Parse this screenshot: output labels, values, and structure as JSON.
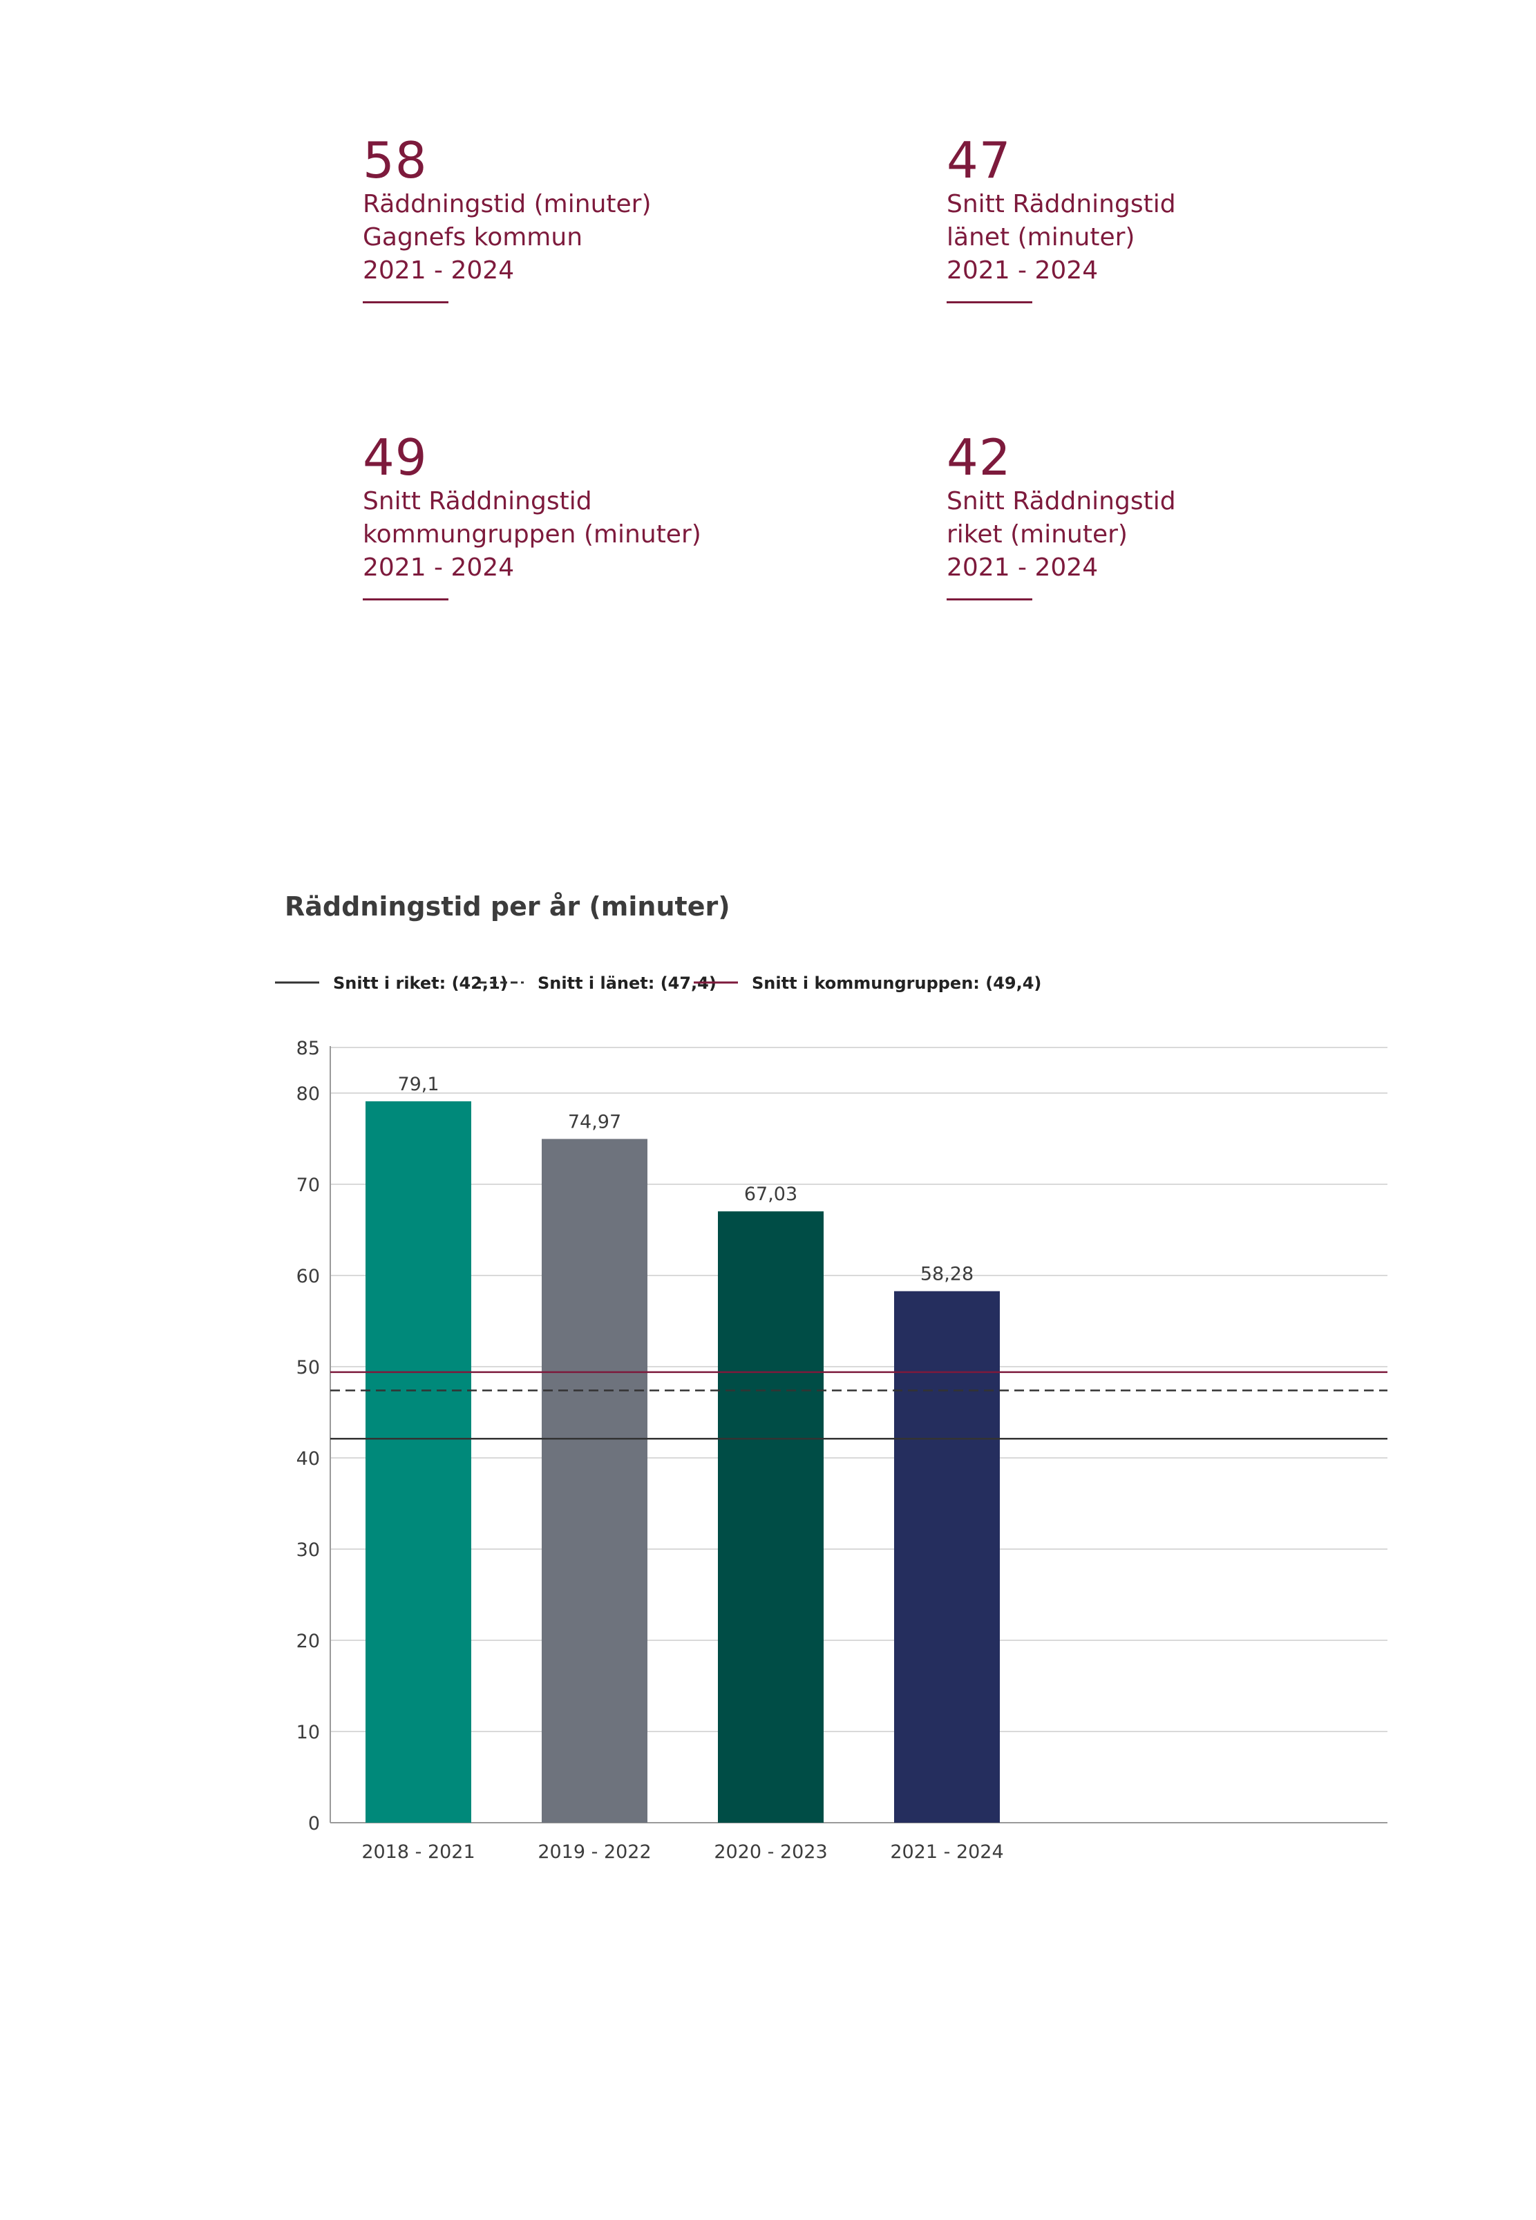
{
  "kpis": [
    {
      "value": "58",
      "lines": [
        "Räddningstid (minuter)",
        "Gagnefs kommun",
        "2021 - 2024"
      ]
    },
    {
      "value": "47",
      "lines": [
        "Snitt Räddningstid",
        "länet (minuter)",
        "2021 - 2024"
      ]
    },
    {
      "value": "49",
      "lines": [
        "Snitt Räddningstid",
        "kommungruppen (minuter)",
        "2021 - 2024"
      ]
    },
    {
      "value": "42",
      "lines": [
        "Snitt Räddningstid",
        "riket (minuter)",
        "2021 - 2024"
      ]
    }
  ],
  "colors": {
    "accent": "#7d1a3c",
    "text": "#3c3c3c",
    "grid": "#d9d9d9",
    "axis": "#9a9a9a"
  },
  "chart_data": {
    "type": "bar",
    "title": "Räddningstid per år (minuter)",
    "xlabel": "",
    "ylabel": "",
    "categories": [
      "2018 - 2021",
      "2019 - 2022",
      "2020 - 2023",
      "2021 - 2024"
    ],
    "values": [
      79.1,
      74.97,
      67.03,
      58.28
    ],
    "value_labels": [
      "79,1",
      "74,97",
      "67,03",
      "58,28"
    ],
    "bar_colors": [
      "#00897a",
      "#6e737d",
      "#004d46",
      "#252e5e"
    ],
    "ylim": [
      0,
      85
    ],
    "yticks": [
      0,
      10,
      20,
      30,
      40,
      50,
      60,
      70,
      80,
      85
    ],
    "category_slots": 6,
    "grid": true,
    "legend_position": "top-left",
    "reference_lines": [
      {
        "label": "Snitt i riket: (42,1)",
        "value": 42.1,
        "color": "#333333",
        "style": "solid"
      },
      {
        "label": "Snitt i länet: (47,4)",
        "value": 47.4,
        "color": "#333333",
        "style": "dashed"
      },
      {
        "label": "Snitt i kommungruppen: (49,4)",
        "value": 49.4,
        "color": "#7d1a3c",
        "style": "solid"
      }
    ]
  }
}
